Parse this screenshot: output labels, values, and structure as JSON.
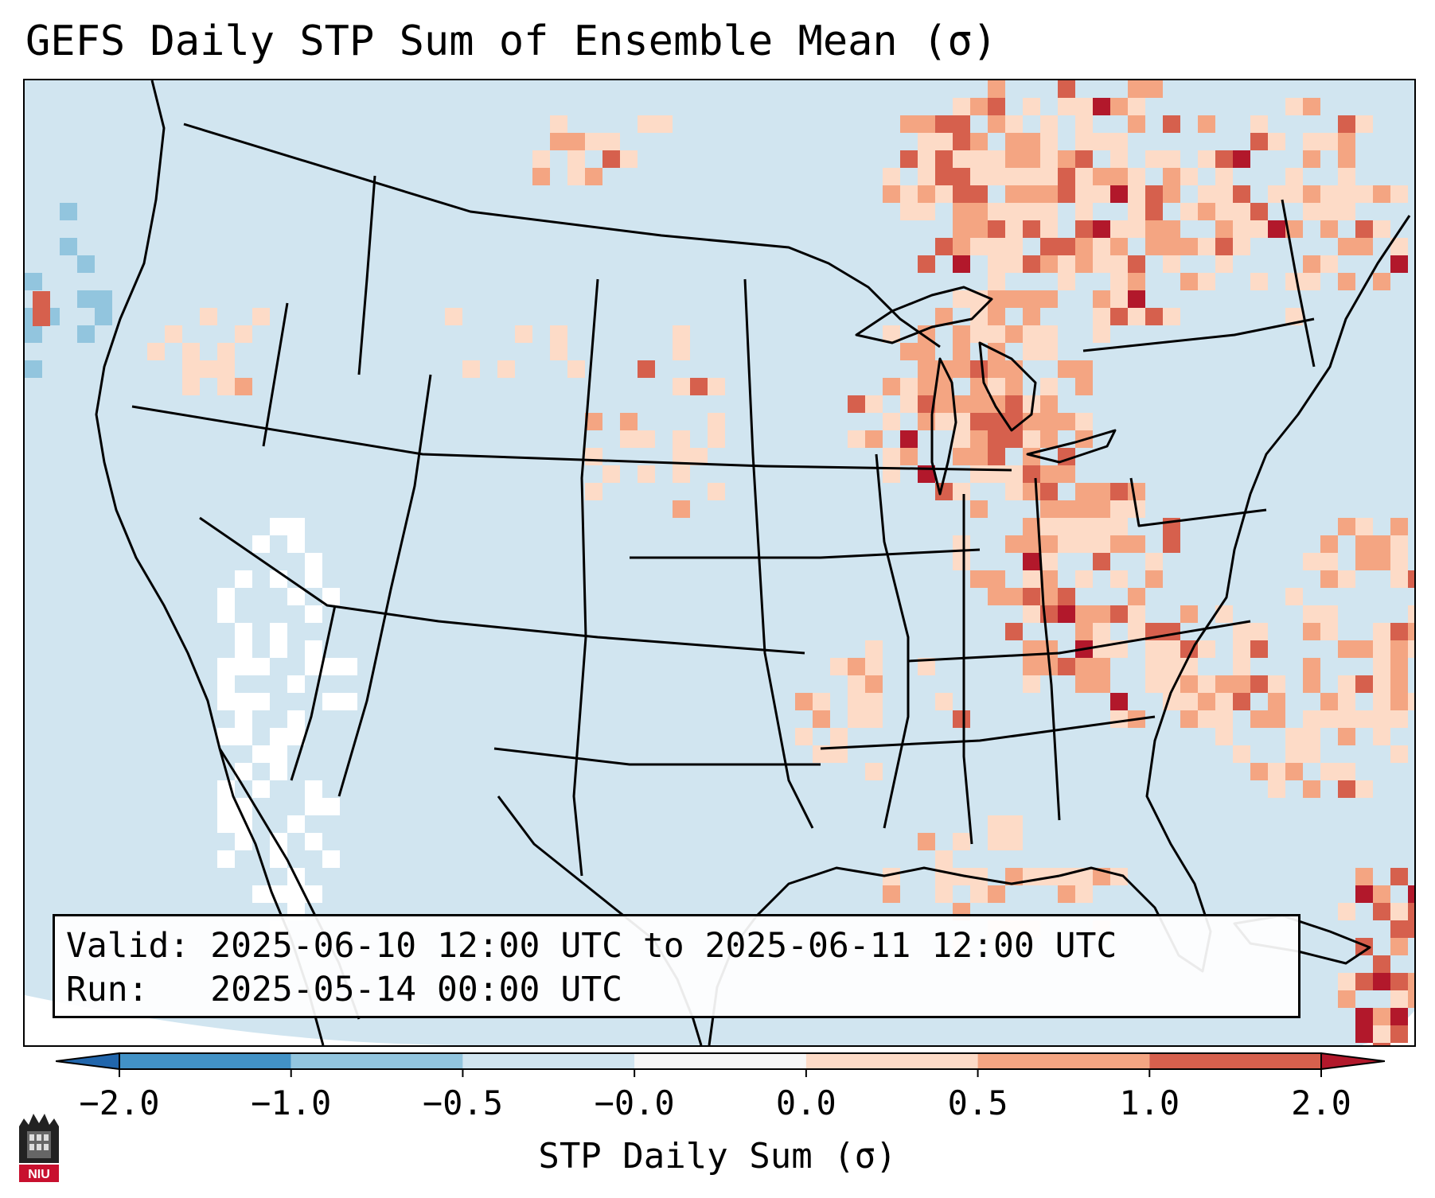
{
  "title": "GEFS Daily STP Sum of Ensemble Mean (σ)",
  "info": {
    "valid_label": "Valid:",
    "valid_value": "2025-06-10 12:00 UTC to 2025-06-11 12:00 UTC",
    "run_label": "Run:",
    "run_value": "2025-05-14 00:00 UTC"
  },
  "colorbar": {
    "label": "STP Daily Sum (σ)",
    "ticks": [
      "−2.0",
      "−1.0",
      "−0.5",
      "−0.0",
      "0.0",
      "0.5",
      "1.0",
      "2.0"
    ],
    "bins": [
      {
        "from": -2.0,
        "to": -1.0,
        "color": "#4292c6"
      },
      {
        "from": -1.0,
        "to": -0.5,
        "color": "#92c5de"
      },
      {
        "from": -0.5,
        "to": -0.0,
        "color": "#d1e5f0"
      },
      {
        "from": -0.0,
        "to": 0.0,
        "color": "#f7f7f7"
      },
      {
        "from": 0.0,
        "to": 0.5,
        "color": "#fddbc7"
      },
      {
        "from": 0.5,
        "to": 1.0,
        "color": "#f4a582"
      },
      {
        "from": 1.0,
        "to": 2.0,
        "color": "#d6604d"
      }
    ],
    "under_color": "#2166ac",
    "over_color": "#b2182b"
  },
  "map": {
    "background_color": "#d1e5f0",
    "land_border_color": "#000000"
  },
  "logo": {
    "text": "NIU"
  }
}
